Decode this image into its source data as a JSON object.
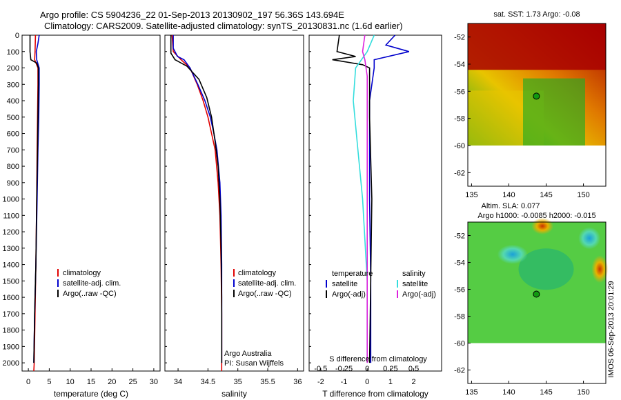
{
  "header": {
    "line1": "Argo profile: CS 5904236_22 01-Sep-2013 20130902_197 56.36S 143.694E",
    "line2": "Climatology: CARS2009. Satellite-adjusted climatology: synTS_20130831.nc (1.6d earlier)"
  },
  "colors": {
    "climatology": "#e00000",
    "satellite": "#0000cc",
    "argo": "#000000",
    "sat_salinity": "#33dddd",
    "argo_salinity": "#dd22dd"
  },
  "footer_stamp": "IMOS 06-Sep-2013 20:01:29",
  "chart_data": [
    {
      "id": "temperature",
      "type": "line",
      "xlabel": "temperature (deg C)",
      "xticks": [
        0,
        5,
        10,
        15,
        20,
        25,
        30
      ],
      "xlim": [
        -1.5,
        31.5
      ],
      "ylim": [
        2050,
        0
      ],
      "yticks": [
        0,
        100,
        200,
        300,
        400,
        500,
        600,
        700,
        800,
        900,
        1000,
        1100,
        1200,
        1300,
        1400,
        1500,
        1600,
        1700,
        1800,
        1900,
        2000
      ],
      "legend": [
        "climatology",
        "satellite-adj. clim.",
        "Argo(..raw -QC)"
      ],
      "series": [
        {
          "name": "climatology",
          "color": "#e00000",
          "points": [
            [
              1.7,
              0
            ],
            [
              1.6,
              100
            ],
            [
              1.5,
              150
            ],
            [
              2.3,
              200
            ],
            [
              2.3,
              300
            ],
            [
              2.2,
              500
            ],
            [
              2.1,
              700
            ],
            [
              2.0,
              1000
            ],
            [
              1.8,
              1400
            ],
            [
              1.6,
              1700
            ],
            [
              1.4,
              2000
            ],
            [
              1.3,
              2050
            ]
          ]
        },
        {
          "name": "satellite-adj. clim.",
          "color": "#0000cc",
          "points": [
            [
              2.6,
              0
            ],
            [
              2.3,
              50
            ],
            [
              1.9,
              100
            ],
            [
              2.0,
              150
            ],
            [
              2.6,
              200
            ],
            [
              2.6,
              300
            ],
            [
              2.5,
              500
            ],
            [
              2.3,
              700
            ],
            [
              2.1,
              1000
            ],
            [
              1.8,
              1400
            ],
            [
              1.5,
              1700
            ],
            [
              1.3,
              2000
            ]
          ]
        },
        {
          "name": "Argo(..raw -QC)",
          "color": "#000000",
          "points": [
            [
              0.4,
              0
            ],
            [
              0.4,
              100
            ],
            [
              0.6,
              150
            ],
            [
              2.0,
              170
            ],
            [
              2.4,
              200
            ],
            [
              2.4,
              300
            ],
            [
              2.3,
              500
            ],
            [
              2.2,
              700
            ],
            [
              2.0,
              1000
            ],
            [
              1.8,
              1400
            ],
            [
              1.5,
              1700
            ],
            [
              1.3,
              2000
            ]
          ]
        }
      ]
    },
    {
      "id": "salinity",
      "type": "line",
      "xlabel": "salinity",
      "xticks": [
        34,
        34.5,
        35,
        35.5,
        36
      ],
      "xlim": [
        33.78,
        36.1
      ],
      "ylim": [
        2050,
        0
      ],
      "legend": [
        "climatology",
        "satellite-adj. clim.",
        "Argo(..raw -QC)"
      ],
      "series": [
        {
          "name": "climatology",
          "color": "#e00000",
          "points": [
            [
              33.9,
              0
            ],
            [
              33.92,
              100
            ],
            [
              34.05,
              150
            ],
            [
              34.2,
              200
            ],
            [
              34.32,
              300
            ],
            [
              34.42,
              400
            ],
            [
              34.5,
              500
            ],
            [
              34.56,
              600
            ],
            [
              34.62,
              700
            ],
            [
              34.67,
              900
            ],
            [
              34.7,
              1100
            ],
            [
              34.72,
              1400
            ],
            [
              34.73,
              1700
            ],
            [
              34.73,
              2050
            ]
          ]
        },
        {
          "name": "satellite-adj. clim.",
          "color": "#0000cc",
          "points": [
            [
              33.92,
              0
            ],
            [
              33.92,
              80
            ],
            [
              33.99,
              130
            ],
            [
              34.1,
              150
            ],
            [
              34.2,
              200
            ],
            [
              34.33,
              300
            ],
            [
              34.45,
              400
            ],
            [
              34.54,
              500
            ],
            [
              34.6,
              600
            ],
            [
              34.65,
              700
            ],
            [
              34.7,
              900
            ],
            [
              34.72,
              1100
            ],
            [
              34.73,
              1400
            ],
            [
              34.73,
              1700
            ],
            [
              34.73,
              2000
            ]
          ]
        },
        {
          "name": "Argo(..raw -QC)",
          "color": "#000000",
          "points": [
            [
              33.88,
              0
            ],
            [
              33.88,
              110
            ],
            [
              33.95,
              150
            ],
            [
              34.15,
              190
            ],
            [
              34.35,
              270
            ],
            [
              34.48,
              380
            ],
            [
              34.56,
              500
            ],
            [
              34.62,
              650
            ],
            [
              34.67,
              800
            ],
            [
              34.7,
              1000
            ],
            [
              34.72,
              1300
            ],
            [
              34.73,
              1600
            ],
            [
              34.73,
              2000
            ]
          ]
        }
      ],
      "annotations": [
        "Argo Australia",
        "PI: Susan Wijffels"
      ]
    },
    {
      "id": "difference",
      "type": "line",
      "xlabel": "T difference from climatology",
      "xticks": [
        -2,
        -1,
        0,
        1,
        2
      ],
      "top_axis_label": "S difference from climatology",
      "top_ticks_labels": [
        "-0.5",
        "-0.25",
        "0",
        "0.25",
        "0.5"
      ],
      "top_ticks_values": [
        -0.5,
        -0.25,
        0,
        0.25,
        0.5
      ],
      "xlim": [
        -2.5,
        3.2
      ],
      "ylim": [
        2050,
        0
      ],
      "legend_left_title": "temperature",
      "legend_right_title": "salinity",
      "legend_left": [
        "satellite",
        "Argo(-adj)"
      ],
      "legend_right": [
        "satellite",
        "Argo(-adj)"
      ],
      "series": [
        {
          "name": "T satellite",
          "color": "#0000cc",
          "points": [
            [
              1.2,
              0
            ],
            [
              0.8,
              60
            ],
            [
              1.8,
              100
            ],
            [
              0.3,
              150
            ],
            [
              0.3,
              200
            ],
            [
              0.1,
              400
            ],
            [
              0.1,
              1000
            ],
            [
              0.15,
              1500
            ],
            [
              0.15,
              2000
            ]
          ]
        },
        {
          "name": "T Argo(-adj)",
          "color": "#000000",
          "points": [
            [
              -1.2,
              0
            ],
            [
              -1.3,
              100
            ],
            [
              -0.5,
              130
            ],
            [
              -1.5,
              150
            ],
            [
              -0.2,
              180
            ],
            [
              0.1,
              200
            ],
            [
              0.1,
              500
            ],
            [
              0.2,
              1000
            ],
            [
              0.1,
              2000
            ]
          ]
        },
        {
          "name": "S satellite",
          "color": "#33dddd",
          "points": [
            [
              0.3,
              0
            ],
            [
              0.0,
              100
            ],
            [
              -0.5,
              200
            ],
            [
              -0.6,
              400
            ],
            [
              -0.4,
              700
            ],
            [
              -0.2,
              1000
            ],
            [
              0.0,
              1500
            ],
            [
              0.0,
              2000
            ]
          ]
        },
        {
          "name": "S Argo(-adj)",
          "color": "#dd22dd",
          "points": [
            [
              -0.1,
              0
            ],
            [
              -0.2,
              100
            ],
            [
              -0.1,
              150
            ],
            [
              0.0,
              250
            ],
            [
              0.0,
              500
            ],
            [
              0.0,
              1000
            ],
            [
              0.0,
              2000
            ]
          ]
        }
      ]
    },
    {
      "id": "sst-map",
      "type": "heatmap",
      "title": "sat. SST: 1.73 Argo: -0.08",
      "xticks": [
        135,
        140,
        145,
        150
      ],
      "yticks": [
        -52,
        -54,
        -56,
        -58,
        -60,
        -62
      ],
      "xlim": [
        134.5,
        153
      ],
      "ylim": [
        -63,
        -51
      ],
      "marker": [
        143.694,
        -56.36
      ]
    },
    {
      "id": "sla-map",
      "type": "heatmap",
      "title": "Altim. SLA: 0.077",
      "subtitle": "Argo h1000: -0.0085 h2000: -0.015",
      "xticks": [
        135,
        140,
        145,
        150
      ],
      "yticks": [
        -52,
        -54,
        -56,
        -58,
        -60,
        -62
      ],
      "xlim": [
        134.5,
        153
      ],
      "ylim": [
        -63,
        -51
      ],
      "marker": [
        143.694,
        -56.36
      ]
    }
  ]
}
